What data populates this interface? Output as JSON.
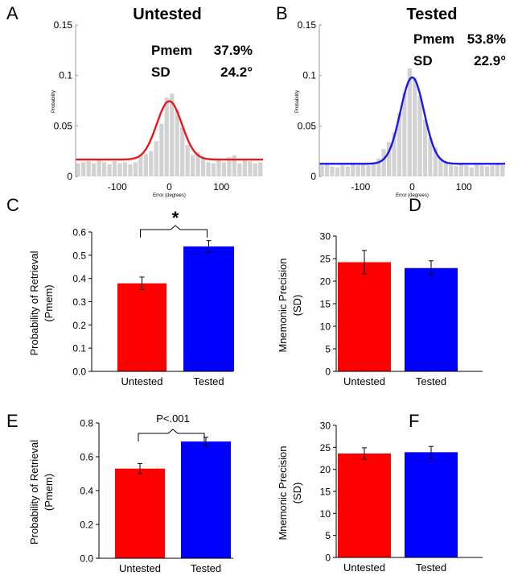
{
  "chart_data": [
    {
      "panel": "A",
      "type": "bar",
      "subtype": "histogram-with-fit",
      "title": "Untested",
      "xlabel": "Error (degrees)",
      "ylabel": "Probability",
      "xlim": [
        -180,
        180
      ],
      "ylim": [
        0,
        0.15
      ],
      "xticks": [
        -100,
        0,
        100
      ],
      "yticks": [
        0,
        0.05,
        0.1,
        0.15
      ],
      "stats": [
        {
          "label": "Pmem",
          "value": "37.9%"
        },
        {
          "label": "SD",
          "value": "24.2°"
        }
      ],
      "bin_width": 10,
      "bin_centers": [
        -175,
        -165,
        -155,
        -145,
        -135,
        -125,
        -115,
        -105,
        -95,
        -85,
        -75,
        -65,
        -55,
        -45,
        -35,
        -25,
        -15,
        -5,
        5,
        15,
        25,
        35,
        45,
        55,
        65,
        75,
        85,
        95,
        105,
        115,
        125,
        135,
        145,
        155,
        165,
        175
      ],
      "bin_values": [
        0.013,
        0.014,
        0.015,
        0.013,
        0.016,
        0.014,
        0.012,
        0.015,
        0.013,
        0.014,
        0.012,
        0.014,
        0.021,
        0.022,
        0.025,
        0.035,
        0.052,
        0.078,
        0.082,
        0.066,
        0.049,
        0.031,
        0.021,
        0.024,
        0.018,
        0.014,
        0.013,
        0.016,
        0.014,
        0.019,
        0.021,
        0.013,
        0.017,
        0.015,
        0.013,
        0.014
      ],
      "fit": {
        "baseline": 0.0167,
        "peak": 0.0745,
        "center": 0,
        "sd": 24.2
      },
      "fit_color": "#e8191a",
      "bar_color": "#d2d2d2"
    },
    {
      "panel": "B",
      "type": "bar",
      "subtype": "histogram-with-fit",
      "title": "Tested",
      "xlabel": "Error (degrees)",
      "ylabel": "Probability",
      "xlim": [
        -180,
        180
      ],
      "ylim": [
        0,
        0.15
      ],
      "xticks": [
        -100,
        0,
        100
      ],
      "yticks": [
        0,
        0.05,
        0.1,
        0.15
      ],
      "stats": [
        {
          "label": "Pmem",
          "value": "53.8%"
        },
        {
          "label": "SD",
          "value": "22.9°"
        }
      ],
      "bin_width": 10,
      "bin_centers": [
        -175,
        -165,
        -155,
        -145,
        -135,
        -125,
        -115,
        -105,
        -95,
        -85,
        -75,
        -65,
        -55,
        -45,
        -35,
        -25,
        -15,
        -5,
        5,
        15,
        25,
        35,
        45,
        55,
        65,
        75,
        85,
        95,
        105,
        115,
        125,
        135,
        145,
        155,
        165,
        175
      ],
      "bin_values": [
        0.011,
        0.012,
        0.01,
        0.009,
        0.011,
        0.01,
        0.012,
        0.011,
        0.013,
        0.011,
        0.012,
        0.018,
        0.027,
        0.034,
        0.044,
        0.063,
        0.083,
        0.107,
        0.098,
        0.08,
        0.056,
        0.038,
        0.029,
        0.018,
        0.014,
        0.011,
        0.01,
        0.012,
        0.011,
        0.009,
        0.012,
        0.011,
        0.01,
        0.011,
        0.012,
        0.011
      ],
      "fit": {
        "baseline": 0.0125,
        "peak": 0.098,
        "center": 0,
        "sd": 22.9
      },
      "fit_color": "#1a18e6",
      "bar_color": "#d2d2d2"
    },
    {
      "panel": "C",
      "type": "bar",
      "categories": [
        "Untested",
        "Tested"
      ],
      "values": [
        0.379,
        0.538
      ],
      "errors": [
        0.027,
        0.025
      ],
      "colors": [
        "#ff0000",
        "#0000ff"
      ],
      "ylabel": "Probability of Retrieval (Pmem)",
      "ylabel_lines": [
        "Probability of Retrieval",
        "(Pmem)"
      ],
      "ylim": [
        0,
        0.6
      ],
      "yticks": [
        "0.0",
        "0.1",
        "0.2",
        "0.3",
        "0.4",
        "0.5",
        "0.6"
      ],
      "significance": "*"
    },
    {
      "panel": "D",
      "type": "bar",
      "categories": [
        "Untested",
        "Tested"
      ],
      "values": [
        24.2,
        22.9
      ],
      "errors": [
        2.6,
        1.6
      ],
      "colors": [
        "#ff0000",
        "#0000ff"
      ],
      "ylabel": "Mnemonic Precision (SD)",
      "ylabel_lines": [
        "Mnemonic  Precision",
        "(SD)"
      ],
      "ylim": [
        0,
        30
      ],
      "yticks": [
        "0",
        "5",
        "10",
        "15",
        "20",
        "25",
        "30"
      ]
    },
    {
      "panel": "E",
      "type": "bar",
      "categories": [
        "Untested",
        "Tested"
      ],
      "values": [
        0.53,
        0.69
      ],
      "errors": [
        0.03,
        0.025
      ],
      "colors": [
        "#ff0000",
        "#0000ff"
      ],
      "ylabel": "Probability of Retrieval (Pmem)",
      "ylabel_lines": [
        "Probability of Retrieval",
        "(Pmem)"
      ],
      "ylim": [
        0,
        0.8
      ],
      "yticks": [
        "0.0",
        "0.2",
        "0.4",
        "0.6",
        "0.8"
      ],
      "significance": "P<.001"
    },
    {
      "panel": "F",
      "type": "bar",
      "categories": [
        "Untested",
        "Tested"
      ],
      "values": [
        23.6,
        23.9
      ],
      "errors": [
        1.3,
        1.3
      ],
      "colors": [
        "#ff0000",
        "#0000ff"
      ],
      "ylabel": "Mnemonic Precision (SD)",
      "ylabel_lines": [
        "Mnemonic  Precision",
        "(SD)"
      ],
      "ylim": [
        0,
        30
      ],
      "yticks": [
        "0",
        "5",
        "10",
        "15",
        "20",
        "25",
        "30"
      ]
    }
  ]
}
